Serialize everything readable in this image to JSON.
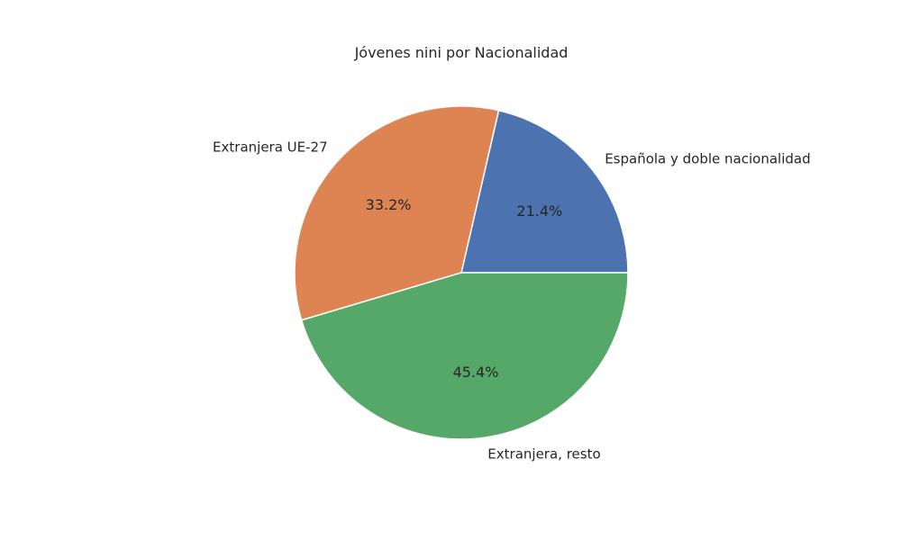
{
  "chart_data": {
    "type": "pie",
    "title": "Jóvenes nini por Nacionalidad",
    "start_angle_deg": 0,
    "direction": "counterclockwise",
    "slices": [
      {
        "label": "Española y doble nacionalidad",
        "value": 21.4,
        "pct_label": "21.4%",
        "color": "#4c72b0"
      },
      {
        "label": "Extranjera UE-27",
        "value": 33.2,
        "pct_label": "33.2%",
        "color": "#dd8452"
      },
      {
        "label": "Extranjera, resto",
        "value": 45.4,
        "pct_label": "45.4%",
        "color": "#55a868"
      }
    ]
  }
}
